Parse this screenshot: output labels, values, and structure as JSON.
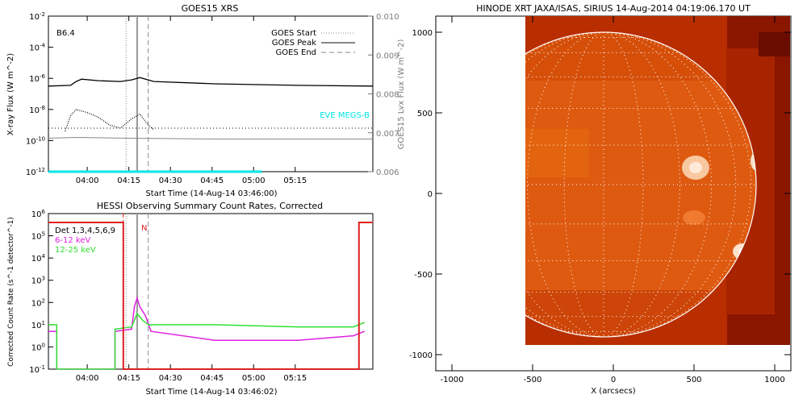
{
  "colors": {
    "eve": "#00e5e5",
    "hessi_red": "#dd2020",
    "hessi_magenta": "#e020e0",
    "hessi_green": "#30e030",
    "grid": "#ffffff"
  },
  "chart_data": [
    {
      "type": "line",
      "title": "GOES15 XRS",
      "xlabel": "Start Time (14-Aug-14 03:46:00)",
      "ylabel": "X-ray Flux (W m^-2)",
      "ylabel_right": "GOES15 Lyx Flux (W m^-2)",
      "x_ticks": [
        "04:00",
        "04:15",
        "04:30",
        "04:45",
        "05:00",
        "05:15"
      ],
      "y_ticks": [
        "10^-2",
        "10^-4",
        "10^-6",
        "10^-8",
        "10^-10",
        "10^-12"
      ],
      "y_ticks_right": [
        "0.010",
        "0.009",
        "0.008",
        "0.007",
        "0.006"
      ],
      "ylim_log10": [
        -12,
        -2
      ],
      "ylim_right": [
        0.006,
        0.01
      ],
      "x_range_minutes": [
        0,
        117
      ],
      "annotation": "B6.4",
      "legend": [
        "GOES Start",
        "GOES Peak",
        "GOES End"
      ],
      "legend_placement": "top-right",
      "side_label": "EVE MEGS-B",
      "events_minutes": {
        "start": 28,
        "peak": 32,
        "end": 36
      },
      "series": [
        {
          "name": "long",
          "style": "solid black",
          "log10_points": [
            [
              0,
              -6.5
            ],
            [
              8,
              -6.45
            ],
            [
              10,
              -6.2
            ],
            [
              12,
              -6.05
            ],
            [
              18,
              -6.15
            ],
            [
              26,
              -6.2
            ],
            [
              30,
              -6.1
            ],
            [
              33,
              -5.95
            ],
            [
              38,
              -6.2
            ],
            [
              60,
              -6.35
            ],
            [
              90,
              -6.45
            ],
            [
              117,
              -6.5
            ]
          ]
        },
        {
          "name": "short",
          "style": "dotted black",
          "log10_points": [
            [
              6,
              -9.4
            ],
            [
              8,
              -8.4
            ],
            [
              10,
              -8.0
            ],
            [
              14,
              -8.2
            ],
            [
              18,
              -8.5
            ],
            [
              22,
              -9.0
            ],
            [
              26,
              -9.2
            ],
            [
              30,
              -8.6
            ],
            [
              33,
              -8.3
            ],
            [
              36,
              -9.0
            ],
            [
              38,
              -9.3
            ]
          ]
        },
        {
          "name": "lyman",
          "style": "gray",
          "log10_points": [
            [
              0,
              -9.85
            ],
            [
              10,
              -9.8
            ],
            [
              30,
              -9.85
            ],
            [
              60,
              -9.9
            ],
            [
              117,
              -9.9
            ]
          ]
        },
        {
          "name": "eve",
          "style": "cyan",
          "log10_points": [
            [
              0,
              -12
            ],
            [
              77,
              -12
            ]
          ]
        }
      ]
    },
    {
      "type": "line",
      "title": "HESSI Observing Summary Count Rates, Corrected",
      "xlabel": "Start Time (14-Aug-14 03:46:02)",
      "ylabel": "Corrected Count Rate (s^-1 detector^-1)",
      "x_ticks": [
        "04:00",
        "04:15",
        "04:30",
        "04:45",
        "05:00",
        "05:15"
      ],
      "y_ticks": [
        "10^6",
        "10^5",
        "10^4",
        "10^3",
        "10^2",
        "10^1",
        "10^0",
        "10^-1"
      ],
      "ylim_log10": [
        -1,
        6
      ],
      "x_range_minutes": [
        0,
        117
      ],
      "legend": [
        "Det 1,3,4,5,6,9",
        "6-12 keV",
        "12-25 keV"
      ],
      "legend_placement": "top-left",
      "marker_label": "N",
      "events_minutes": {
        "start": 28,
        "peak": 32,
        "end": 36
      },
      "series": [
        {
          "name": "6-12 keV",
          "color": "magenta",
          "log10_points": [
            [
              0,
              0.7
            ],
            [
              3,
              0.7
            ],
            [
              3,
              -1
            ],
            [
              24,
              -1
            ],
            [
              24,
              0.7
            ],
            [
              30,
              0.8
            ],
            [
              31,
              1.8
            ],
            [
              32,
              2.2
            ],
            [
              33,
              1.8
            ],
            [
              35,
              1.4
            ],
            [
              37,
              0.7
            ],
            [
              60,
              0.3
            ],
            [
              90,
              0.3
            ],
            [
              110,
              0.5
            ],
            [
              114,
              0.7
            ]
          ]
        },
        {
          "name": "12-25 keV",
          "color": "green",
          "log10_points": [
            [
              0,
              1.0
            ],
            [
              3,
              1.0
            ],
            [
              3,
              -1
            ],
            [
              24,
              -1
            ],
            [
              24,
              0.8
            ],
            [
              30,
              0.9
            ],
            [
              32,
              1.5
            ],
            [
              34,
              1.2
            ],
            [
              36,
              1.0
            ],
            [
              60,
              1.0
            ],
            [
              90,
              0.9
            ],
            [
              110,
              0.9
            ],
            [
              114,
              1.1
            ]
          ]
        },
        {
          "name": "attenuator",
          "color": "red",
          "log10_points": [
            [
              0,
              5.6
            ],
            [
              27,
              5.6
            ],
            [
              27,
              -1
            ],
            [
              112,
              -1
            ],
            [
              112,
              5.6
            ],
            [
              117,
              5.6
            ]
          ]
        }
      ]
    },
    {
      "type": "heatmap",
      "title": "HINODE XRT JAXA/ISAS, SIRIUS 14-Aug-2014 04:19:06.170 UT",
      "xlabel": "X (arcsecs)",
      "ylabel": "",
      "x_ticks": [
        "-1000",
        "-500",
        "0",
        "500",
        "1000"
      ],
      "y_ticks": [
        "1000",
        "500",
        "0",
        "-500",
        "-1000"
      ],
      "xlim": [
        -1100,
        1100
      ],
      "ylim": [
        -1100,
        1100
      ],
      "solar_radius_arcsec": 945,
      "disk_center": [
        -70,
        55
      ]
    }
  ]
}
